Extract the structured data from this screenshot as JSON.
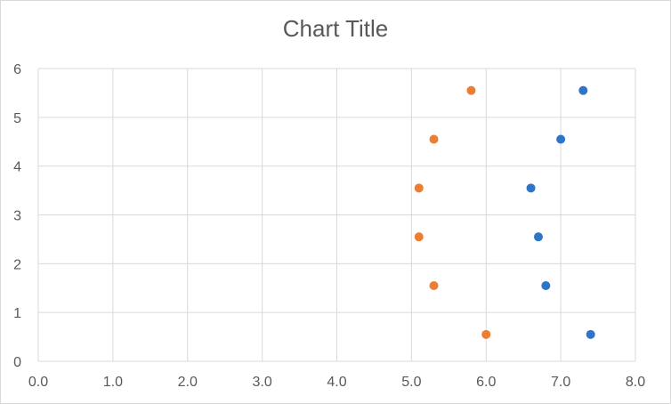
{
  "chart_data": {
    "type": "scatter",
    "title": "Chart Title",
    "xlabel": "",
    "ylabel": "",
    "xlim": [
      0,
      8
    ],
    "ylim": [
      0,
      6
    ],
    "x_ticks": [
      "0.0",
      "1.0",
      "2.0",
      "3.0",
      "4.0",
      "5.0",
      "6.0",
      "7.0",
      "8.0"
    ],
    "y_ticks": [
      "0",
      "1",
      "2",
      "3",
      "4",
      "5",
      "6"
    ],
    "grid": true,
    "legend": "none",
    "series": [
      {
        "color": "#2e75c9",
        "points": [
          {
            "x": 7.4,
            "y": 0.55
          },
          {
            "x": 6.8,
            "y": 1.55
          },
          {
            "x": 6.7,
            "y": 2.55
          },
          {
            "x": 6.6,
            "y": 3.55
          },
          {
            "x": 7.0,
            "y": 4.55
          },
          {
            "x": 7.3,
            "y": 5.55
          }
        ]
      },
      {
        "color": "#ed7d31",
        "points": [
          {
            "x": 6.0,
            "y": 0.55
          },
          {
            "x": 5.3,
            "y": 1.55
          },
          {
            "x": 5.1,
            "y": 2.55
          },
          {
            "x": 5.1,
            "y": 3.55
          },
          {
            "x": 5.3,
            "y": 4.55
          },
          {
            "x": 5.8,
            "y": 5.55
          }
        ]
      }
    ]
  }
}
